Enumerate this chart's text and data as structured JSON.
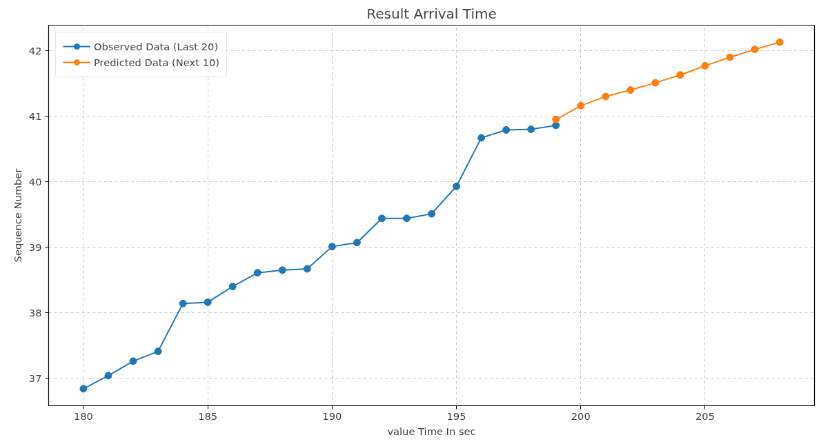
{
  "chart_data": {
    "type": "line",
    "title": "Result Arrival Time",
    "xlabel": "value Time In sec",
    "ylabel": "Sequence Number",
    "series": [
      {
        "name": "Observed Data (Last 20)",
        "color": "#1f77b4",
        "x": [
          180,
          181,
          182,
          183,
          184,
          185,
          186,
          187,
          188,
          189,
          190,
          191,
          192,
          193,
          194,
          195,
          196,
          197,
          198,
          199
        ],
        "values": [
          36.84,
          37.04,
          37.26,
          37.41,
          38.14,
          38.16,
          38.4,
          38.61,
          38.65,
          38.67,
          39.01,
          39.07,
          39.44,
          39.44,
          39.51,
          39.93,
          40.67,
          40.79,
          40.8,
          40.86
        ]
      },
      {
        "name": "Predicted Data (Next 10)",
        "color": "#ff7f0e",
        "x": [
          199,
          200,
          201,
          202,
          203,
          204,
          205,
          206,
          207,
          208
        ],
        "values": [
          40.95,
          41.16,
          41.3,
          41.4,
          41.51,
          41.63,
          41.77,
          41.9,
          42.02,
          42.13
        ]
      }
    ],
    "xlim": [
      178.6,
      209.4
    ],
    "ylim": [
      36.58,
      42.39
    ],
    "xticks": [
      180,
      185,
      190,
      195,
      200,
      205
    ],
    "yticks": [
      37,
      38,
      39,
      40,
      41,
      42
    ],
    "grid": true,
    "legend": "top left",
    "marker": "circle",
    "line_style": "solid"
  }
}
